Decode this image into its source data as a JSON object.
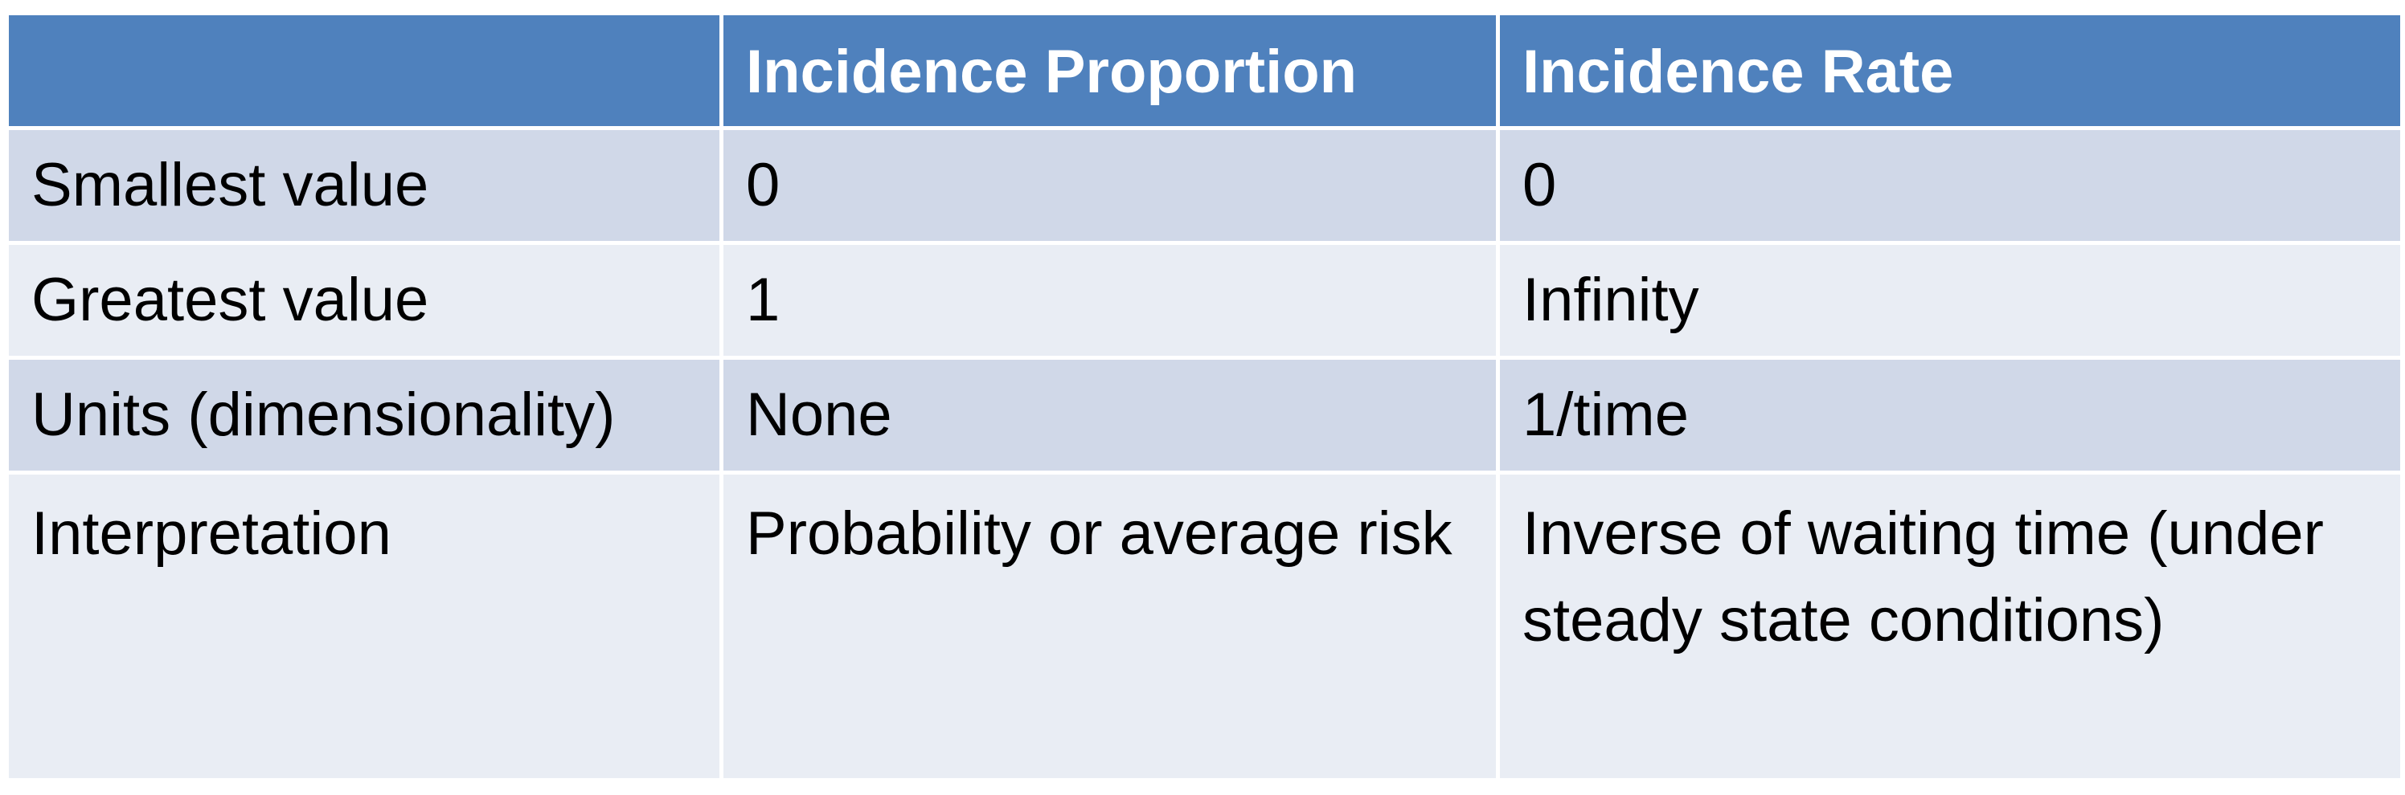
{
  "table": {
    "headers": [
      "",
      "Incidence Proportion",
      "Incidence Rate"
    ],
    "rows": [
      [
        "Smallest value",
        "0",
        "0"
      ],
      [
        "Greatest value",
        "1",
        "Infinity"
      ],
      [
        "Units (dimensionality)",
        "None",
        "1/time"
      ],
      [
        "Interpretation",
        "Probability or average risk",
        "Inverse of waiting time (under steady state conditions)"
      ]
    ]
  },
  "colors": {
    "header_bg": "#4f81bd",
    "row_band_dark": "#d0d8e8",
    "row_band_light": "#e9edf4",
    "header_text": "#ffffff",
    "body_text": "#000000"
  }
}
